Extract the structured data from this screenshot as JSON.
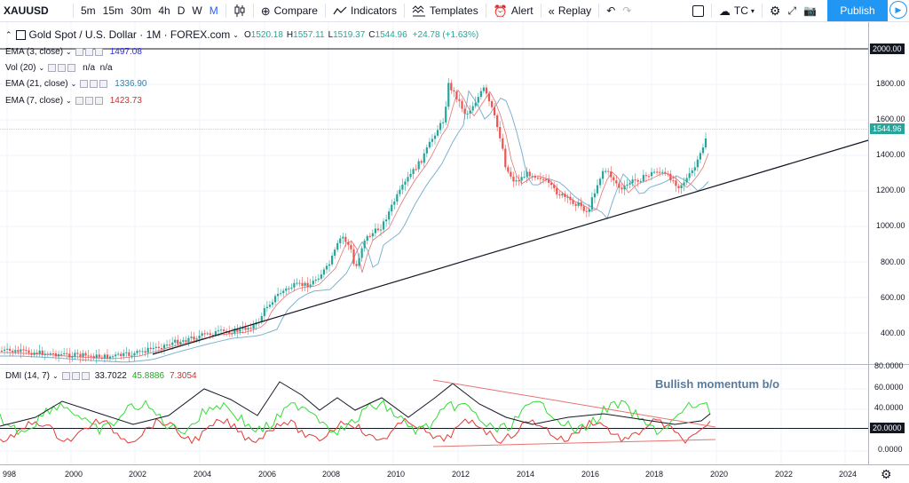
{
  "toolbar": {
    "symbol": "XAUUSD",
    "intervals": [
      "5m",
      "15m",
      "30m",
      "4h",
      "D",
      "W",
      "M"
    ],
    "active_interval": "M",
    "compare": "Compare",
    "indicators": "Indicators",
    "templates": "Templates",
    "alert": "Alert",
    "replay": "Replay",
    "layout": "TC",
    "publish": "Publish"
  },
  "main_legend": {
    "title": "Gold Spot / U.S. Dollar · 1M · FOREX.com",
    "o_label": "O",
    "o": "1520.18",
    "h_label": "H",
    "h": "1557.11",
    "l_label": "L",
    "l": "1519.37",
    "c_label": "C",
    "c": "1544.96",
    "change": "+24.78 (+1.63%)"
  },
  "indicators": [
    {
      "name": "EMA (3, close)",
      "value": "1497.08",
      "color": "#2a2ad8"
    },
    {
      "name": "Vol (20)",
      "value": "n/a  n/a",
      "color": "#131722"
    },
    {
      "name": "EMA (21, close)",
      "value": "1336.90",
      "color": "#3a7ca5"
    },
    {
      "name": "EMA (7, close)",
      "value": "1423.73",
      "color": "#d32f2f"
    }
  ],
  "dmi_legend": {
    "name": "DMI (14, 7)",
    "adx": "33.7022",
    "adx_color": "#131722",
    "plus": "45.8886",
    "plus_color": "#22aa22",
    "minus": "7.3054",
    "minus_color": "#d32f2f"
  },
  "annotation": "Bullish momentum b/o",
  "price_axis": [
    "2000.00",
    "1800.00",
    "1600.00",
    "1400.00",
    "1200.00",
    "1000.00",
    "800.00",
    "600.00",
    "400.00"
  ],
  "last_price": "1544.96",
  "dmi_axis": [
    "80.0000",
    "60.0000",
    "40.0000",
    "0.0000"
  ],
  "dmi_level": "20.0000",
  "time_axis": [
    "998",
    "2000",
    "2002",
    "2004",
    "2006",
    "2008",
    "2010",
    "2012",
    "2014",
    "2016",
    "2018",
    "2020",
    "2022",
    "2024"
  ],
  "colors": {
    "up": "#26a69a",
    "down": "#ef5350",
    "accent": "#2962ff",
    "publish": "#2196f3"
  }
}
